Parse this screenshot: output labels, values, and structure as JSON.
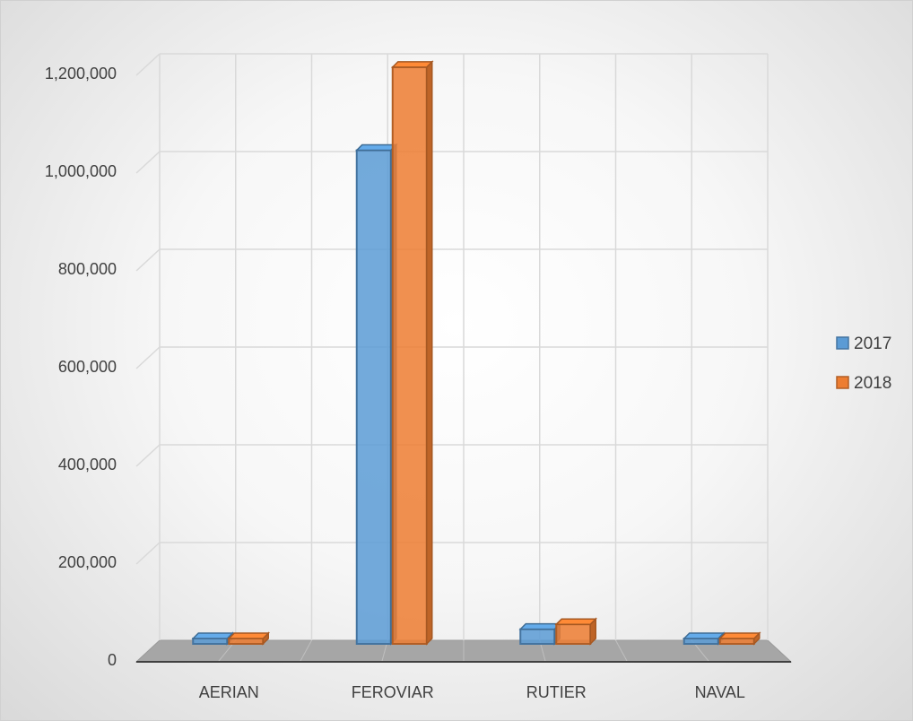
{
  "chart_data": {
    "type": "bar",
    "title": "",
    "xlabel": "",
    "ylabel": "",
    "categories": [
      "AERIAN",
      "FEROVIAR",
      "RUTIER",
      "NAVAL"
    ],
    "series": [
      {
        "name": "2017",
        "color": "#5b9bd5",
        "values": [
          0,
          1010000,
          30000,
          0
        ]
      },
      {
        "name": "2018",
        "color": "#ed7d31",
        "values": [
          0,
          1180000,
          40000,
          0
        ]
      }
    ],
    "ylim": [
      0,
      1200000
    ],
    "yticks": [
      0,
      200000,
      400000,
      600000,
      800000,
      1000000,
      1200000
    ],
    "ytick_labels": [
      "0",
      "200,000",
      "400,000",
      "600,000",
      "800,000",
      "1,000,000",
      "1,200,000"
    ],
    "grid": true,
    "legend_position": "right",
    "style": "3d-column"
  }
}
